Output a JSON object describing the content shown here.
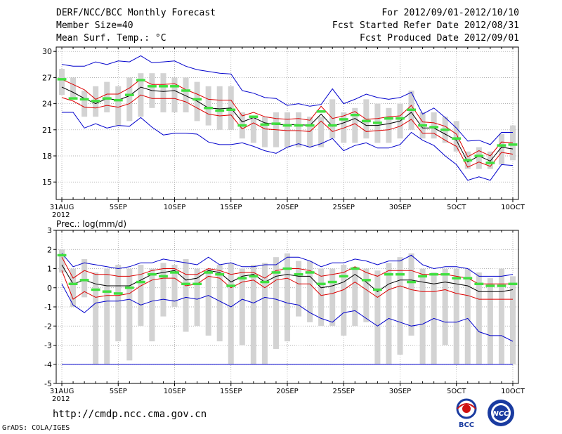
{
  "header": {
    "title": "DERF/NCC/BCC Monthly Forecast",
    "member_size": "Member Size=40",
    "variable": "Mean Surf. Temp.: °C",
    "forecast_period": "For 2012/09/01-2012/10/10",
    "started_date": "Fcst Started Refer Date 2012/08/31",
    "produced_date": "Fcst Produced Date 2012/09/01"
  },
  "footer": {
    "url": "http://cmdp.ncc.cma.gov.cn",
    "grads": "GrADS: COLA/IGES",
    "logo_bcc": "BCC",
    "logo_ncc": "NCC"
  },
  "colors": {
    "box": "#d3d3d3",
    "median": "#40e040",
    "envelope": "#0000cc",
    "percentile": "#dd0000",
    "mean": "#000000"
  },
  "chart_data": [
    {
      "type": "box",
      "title": "Mean Surf. Temp.: °C",
      "x": [
        0,
        1,
        2,
        3,
        4,
        5,
        6,
        7,
        8,
        9,
        10,
        11,
        12,
        13,
        14,
        15,
        16,
        17,
        18,
        19,
        20,
        21,
        22,
        23,
        24,
        25,
        26,
        27,
        28,
        29,
        30,
        31,
        32,
        33,
        34,
        35,
        36,
        37,
        38,
        39,
        40
      ],
      "xlim": [
        -0.5,
        40.5
      ],
      "ylim": [
        13,
        30.5
      ],
      "yticks": [
        15,
        18,
        21,
        24,
        27,
        30
      ],
      "xticks": [
        {
          "x": 0,
          "label": "31AUG",
          "sublabel": "2012"
        },
        {
          "x": 5,
          "label": "5SEP"
        },
        {
          "x": 10,
          "label": "10SEP"
        },
        {
          "x": 15,
          "label": "15SEP"
        },
        {
          "x": 20,
          "label": "20SEP"
        },
        {
          "x": 25,
          "label": "25SEP"
        },
        {
          "x": 30,
          "label": "30SEP"
        },
        {
          "x": 35,
          "label": "5OCT"
        },
        {
          "x": 40,
          "label": "10OCT"
        }
      ],
      "box_low": [
        25.0,
        24.5,
        22.5,
        22.5,
        23.0,
        21.5,
        22.0,
        22.5,
        23.5,
        23.0,
        23.0,
        23.0,
        22.0,
        21.5,
        21.0,
        21.0,
        20.0,
        19.5,
        19.0,
        19.0,
        19.0,
        19.0,
        19.0,
        19.0,
        20.0,
        19.5,
        19.5,
        20.0,
        19.5,
        19.5,
        20.0,
        21.0,
        20.0,
        20.0,
        19.5,
        18.5,
        16.5,
        16.5,
        16.5,
        17.0,
        17.5
      ],
      "box_high": [
        28.0,
        27.0,
        25.5,
        26.0,
        26.5,
        26.0,
        27.0,
        27.5,
        27.5,
        27.5,
        27.0,
        27.0,
        26.5,
        26.0,
        26.0,
        26.0,
        23.0,
        22.5,
        22.5,
        23.0,
        23.0,
        23.0,
        22.5,
        22.5,
        24.5,
        23.0,
        23.5,
        24.5,
        24.0,
        23.5,
        24.0,
        25.5,
        23.0,
        23.0,
        22.5,
        22.0,
        18.5,
        19.0,
        18.5,
        20.5,
        21.5
      ],
      "median": [
        26.8,
        24.6,
        24.5,
        24.3,
        24.6,
        24.4,
        25.0,
        26.7,
        26.0,
        26.0,
        26.0,
        25.5,
        24.5,
        23.5,
        23.2,
        23.3,
        21.5,
        22.5,
        21.6,
        21.7,
        21.5,
        21.5,
        21.5,
        23.1,
        21.5,
        22.2,
        22.7,
        22.0,
        21.8,
        22.3,
        22.3,
        23.3,
        21.5,
        21.3,
        21.0,
        20.0,
        17.5,
        18.0,
        17.2,
        19.2,
        19.3
      ],
      "series": [
        {
          "name": "max",
          "role": "envelope",
          "values": [
            28.5,
            28.3,
            28.3,
            28.8,
            28.5,
            28.9,
            28.8,
            29.5,
            28.7,
            28.8,
            28.9,
            28.3,
            27.9,
            27.7,
            27.5,
            27.4,
            25.5,
            25.2,
            24.7,
            24.6,
            23.8,
            24.0,
            23.7,
            23.9,
            25.7,
            24.0,
            24.5,
            25.1,
            24.7,
            24.5,
            24.7,
            25.3,
            22.8,
            23.5,
            22.4,
            21.2,
            19.7,
            19.8,
            19.3,
            20.7,
            20.7
          ]
        },
        {
          "name": "90th percentile",
          "role": "percentile",
          "values": [
            26.8,
            26.2,
            25.6,
            24.5,
            25.1,
            25.1,
            25.8,
            26.8,
            26.2,
            26.2,
            26.3,
            25.6,
            25.1,
            24.5,
            24.4,
            24.4,
            22.6,
            23.0,
            22.5,
            22.3,
            22.2,
            22.3,
            22.1,
            23.7,
            22.3,
            22.6,
            23.1,
            22.2,
            22.3,
            22.5,
            22.6,
            23.8,
            21.9,
            21.8,
            21.4,
            20.5,
            17.9,
            18.6,
            18.0,
            19.6,
            19.5
          ]
        },
        {
          "name": "mean",
          "role": "mean",
          "values": [
            25.9,
            25.3,
            24.6,
            24.0,
            24.6,
            24.4,
            24.9,
            25.9,
            25.5,
            25.4,
            25.5,
            24.9,
            24.3,
            23.5,
            23.4,
            23.5,
            21.9,
            22.4,
            21.8,
            21.6,
            21.6,
            21.6,
            21.5,
            22.8,
            21.4,
            21.8,
            22.3,
            21.5,
            21.5,
            21.7,
            22.0,
            23.0,
            21.2,
            21.2,
            20.5,
            19.8,
            17.3,
            18.0,
            17.4,
            19.0,
            18.8
          ]
        },
        {
          "name": "10th percentile",
          "role": "percentile",
          "values": [
            24.7,
            24.3,
            23.6,
            23.5,
            23.8,
            23.6,
            24.0,
            25.0,
            24.6,
            24.6,
            24.6,
            24.2,
            23.5,
            22.8,
            22.6,
            22.7,
            21.1,
            21.8,
            21.1,
            21.0,
            20.9,
            20.9,
            20.8,
            22.0,
            20.8,
            21.2,
            21.7,
            20.8,
            20.9,
            21.0,
            21.4,
            22.2,
            20.6,
            20.6,
            19.8,
            19.1,
            16.7,
            17.3,
            16.8,
            18.4,
            18.2
          ]
        },
        {
          "name": "min",
          "role": "envelope",
          "values": [
            23.0,
            23.0,
            21.2,
            21.7,
            21.2,
            21.5,
            21.4,
            22.4,
            21.3,
            20.4,
            20.6,
            20.6,
            20.5,
            19.6,
            19.3,
            19.3,
            19.5,
            19.1,
            18.6,
            18.3,
            19.0,
            19.4,
            19.0,
            19.4,
            20.0,
            18.6,
            19.2,
            19.5,
            18.9,
            18.9,
            19.3,
            20.7,
            19.8,
            19.2,
            18.0,
            17.0,
            15.2,
            15.6,
            15.2,
            17.0,
            16.9
          ]
        }
      ]
    },
    {
      "type": "box",
      "title": "Prec.: log(mm/d)",
      "x": [
        0,
        1,
        2,
        3,
        4,
        5,
        6,
        7,
        8,
        9,
        10,
        11,
        12,
        13,
        14,
        15,
        16,
        17,
        18,
        19,
        20,
        21,
        22,
        23,
        24,
        25,
        26,
        27,
        28,
        29,
        30,
        31,
        32,
        33,
        34,
        35,
        36,
        37,
        38,
        39,
        40
      ],
      "xlim": [
        -0.5,
        40.5
      ],
      "ylim": [
        -5,
        3
      ],
      "yticks": [
        -5,
        -4,
        -3,
        -2,
        -1,
        0,
        1,
        2,
        3
      ],
      "xticks": [
        {
          "x": 0,
          "label": "31AUG",
          "sublabel": "2012"
        },
        {
          "x": 5,
          "label": "5SEP"
        },
        {
          "x": 10,
          "label": "10SEP"
        },
        {
          "x": 15,
          "label": "15SEP"
        },
        {
          "x": 20,
          "label": "20SEP"
        },
        {
          "x": 25,
          "label": "25SEP"
        },
        {
          "x": 30,
          "label": "30SEP"
        },
        {
          "x": 35,
          "label": "5OCT"
        },
        {
          "x": 40,
          "label": "10OCT"
        }
      ],
      "box_low": [
        0.8,
        -1.0,
        -0.5,
        -4.0,
        -4.0,
        -2.8,
        -3.8,
        -2.0,
        -2.8,
        -1.5,
        -1.0,
        -2.3,
        -2.0,
        -2.5,
        -2.8,
        -4.0,
        -3.0,
        -4.0,
        -4.0,
        -3.2,
        -2.8,
        -1.5,
        -1.8,
        -2.0,
        -2.0,
        -2.5,
        -2.0,
        -1.8,
        -4.0,
        -4.0,
        -3.5,
        -2.5,
        -4.0,
        -4.0,
        -3.0,
        -4.0,
        -4.0,
        -4.0,
        -4.0,
        -4.0,
        -4.0
      ],
      "box_high": [
        2.0,
        1.0,
        1.5,
        0.8,
        1.0,
        1.2,
        1.0,
        1.2,
        1.0,
        1.3,
        1.2,
        1.5,
        1.0,
        1.0,
        1.2,
        1.3,
        1.0,
        1.2,
        1.3,
        1.6,
        1.8,
        1.4,
        1.4,
        1.0,
        1.0,
        1.2,
        1.1,
        1.0,
        0.9,
        1.3,
        1.6,
        1.8,
        1.0,
        0.8,
        1.0,
        1.0,
        1.0,
        0.8,
        0.5,
        1.0,
        0.6
      ],
      "median": [
        1.7,
        0.2,
        0.4,
        -0.1,
        -0.2,
        -0.3,
        0.0,
        0.3,
        0.7,
        0.6,
        0.8,
        0.2,
        0.2,
        0.8,
        0.7,
        0.1,
        0.5,
        0.6,
        0.3,
        0.8,
        1.0,
        0.7,
        0.8,
        0.2,
        0.3,
        0.6,
        1.0,
        0.4,
        -0.1,
        0.7,
        0.7,
        0.3,
        0.6,
        0.7,
        0.7,
        0.5,
        0.5,
        0.2,
        0.1,
        0.1,
        0.2
      ],
      "series": [
        {
          "name": "max",
          "role": "envelope",
          "values": [
            1.8,
            1.1,
            1.3,
            1.2,
            1.1,
            1.0,
            1.1,
            1.3,
            1.3,
            1.5,
            1.4,
            1.3,
            1.2,
            1.6,
            1.2,
            1.3,
            1.1,
            1.1,
            1.2,
            1.2,
            1.6,
            1.6,
            1.4,
            1.1,
            1.3,
            1.3,
            1.5,
            1.4,
            1.2,
            1.4,
            1.4,
            1.7,
            1.2,
            1.0,
            1.1,
            1.1,
            1.0,
            0.6,
            0.6,
            0.6,
            0.7
          ]
        },
        {
          "name": "90th percentile",
          "role": "percentile",
          "values": [
            1.6,
            0.5,
            0.9,
            0.7,
            0.7,
            0.6,
            0.6,
            0.7,
            0.9,
            1.0,
            1.0,
            0.7,
            0.7,
            1.0,
            0.9,
            0.7,
            0.8,
            0.8,
            0.5,
            0.9,
            1.0,
            1.0,
            0.9,
            0.6,
            0.7,
            0.8,
            1.1,
            0.8,
            0.6,
            0.9,
            0.9,
            0.9,
            0.7,
            0.7,
            0.7,
            0.6,
            0.5,
            0.2,
            0.2,
            0.2,
            0.2
          ]
        },
        {
          "name": "mean",
          "role": "mean",
          "values": [
            1.2,
            0.2,
            0.4,
            0.2,
            0.1,
            0.1,
            0.1,
            0.4,
            0.7,
            0.8,
            0.9,
            0.4,
            0.5,
            0.9,
            0.8,
            0.3,
            0.6,
            0.7,
            0.3,
            0.6,
            0.7,
            0.6,
            0.6,
            0.0,
            0.1,
            0.3,
            0.7,
            0.3,
            -0.2,
            0.2,
            0.4,
            0.4,
            0.3,
            0.2,
            0.3,
            0.2,
            0.1,
            -0.2,
            -0.2,
            -0.2,
            -0.1
          ]
        },
        {
          "name": "10th percentile",
          "role": "percentile",
          "values": [
            0.9,
            -0.6,
            -0.2,
            -0.5,
            -0.4,
            -0.4,
            -0.3,
            0.1,
            0.4,
            0.5,
            0.5,
            0.1,
            0.2,
            0.6,
            0.5,
            0.0,
            0.3,
            0.4,
            0.0,
            0.4,
            0.5,
            0.2,
            0.2,
            -0.4,
            -0.3,
            -0.1,
            0.3,
            -0.1,
            -0.5,
            -0.1,
            0.1,
            -0.1,
            -0.2,
            -0.2,
            -0.1,
            -0.3,
            -0.4,
            -0.6,
            -0.6,
            -0.6,
            -0.6
          ]
        },
        {
          "name": "min",
          "role": "envelope",
          "values": [
            0.2,
            -0.9,
            -1.3,
            -0.8,
            -0.7,
            -0.7,
            -0.6,
            -0.9,
            -0.7,
            -0.6,
            -0.7,
            -0.5,
            -0.6,
            -0.4,
            -0.7,
            -1.0,
            -0.6,
            -0.8,
            -0.5,
            -0.6,
            -0.8,
            -0.9,
            -1.3,
            -1.6,
            -1.8,
            -1.3,
            -1.2,
            -1.6,
            -2.0,
            -1.6,
            -1.8,
            -2.0,
            -1.9,
            -1.6,
            -1.8,
            -1.8,
            -1.6,
            -2.3,
            -2.5,
            -2.5,
            -2.8
          ]
        },
        {
          "name": "lower bound",
          "role": "envelope",
          "values": [
            -4,
            -4,
            -4,
            -4,
            -4,
            -4,
            -4,
            -4,
            -4,
            -4,
            -4,
            -4,
            -4,
            -4,
            -4,
            -4,
            -4,
            -4,
            -4,
            -4,
            -4,
            -4,
            -4,
            -4,
            -4,
            -4,
            -4,
            -4,
            -4,
            -4,
            -4,
            -4,
            -4,
            -4,
            -4,
            -4,
            -4,
            -4,
            -4,
            -4,
            -4
          ]
        }
      ]
    }
  ]
}
